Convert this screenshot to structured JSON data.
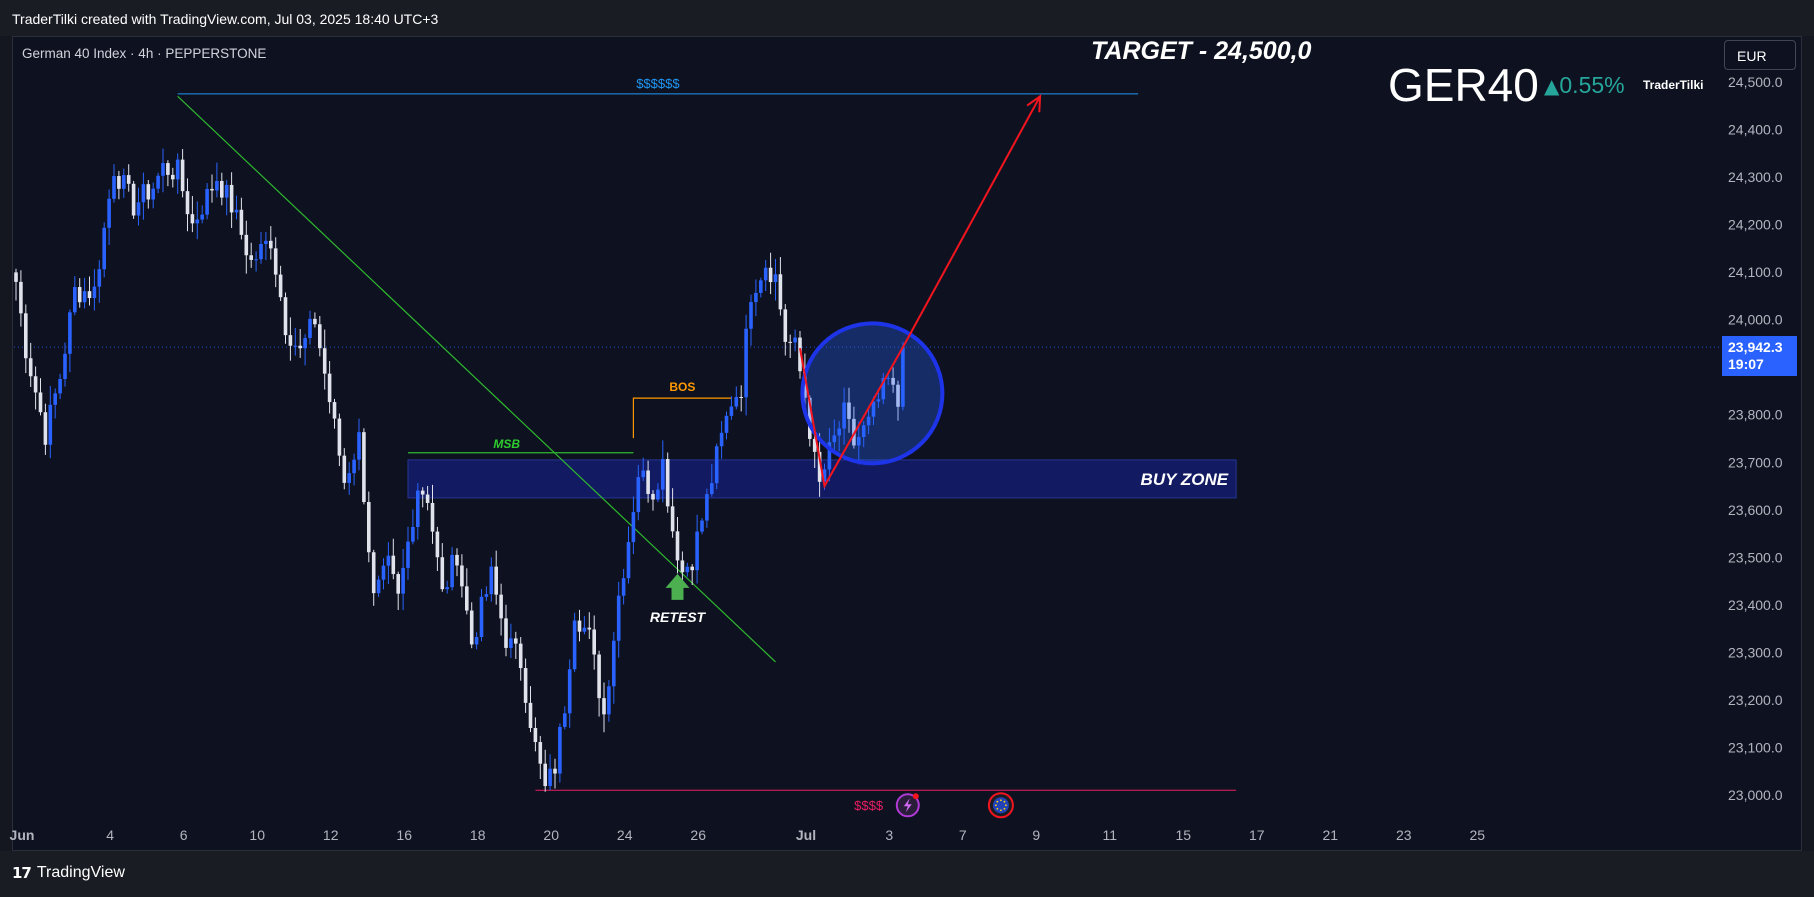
{
  "header": {
    "credit": "TraderTilki created with TradingView.com, Jul 03, 2025 18:40 UTC+3"
  },
  "footer": {
    "logo_mark": "17",
    "logo_text": "TradingView"
  },
  "symbol": {
    "description": "German 40 Index · 4h · PEPPERSTONE",
    "ticker": "GER40",
    "change": "0.55%",
    "brand": "TraderTilki",
    "currency": "EUR"
  },
  "last_price": {
    "value": 23942.3,
    "label": "23,942.3",
    "countdown": "19:07"
  },
  "colors": {
    "background": "#0e1220",
    "up_candle": "#2962ff",
    "down_candle": "#e0e3eb",
    "accent_red": "#f2141e",
    "accent_green": "#26a69a",
    "trendline": "#2eb82e",
    "bos": "#ff9800",
    "buy_zone": "#131d6e"
  },
  "chart_data": {
    "type": "candlestick",
    "timeframe": "4h",
    "ylim": [
      22920,
      24620
    ],
    "y_ticks": [
      {
        "value": 24500,
        "label": "24,500.0"
      },
      {
        "value": 24400,
        "label": "24,400.0"
      },
      {
        "value": 24300,
        "label": "24,300.0"
      },
      {
        "value": 24200,
        "label": "24,200.0"
      },
      {
        "value": 24100,
        "label": "24,100.0"
      },
      {
        "value": 24000,
        "label": "24,000.0"
      },
      {
        "value": 23800,
        "label": "23,800.0"
      },
      {
        "value": 23700,
        "label": "23,700.0"
      },
      {
        "value": 23600,
        "label": "23,600.0"
      },
      {
        "value": 23500,
        "label": "23,500.0"
      },
      {
        "value": 23400,
        "label": "23,400.0"
      },
      {
        "value": 23300,
        "label": "23,300.0"
      },
      {
        "value": 23200,
        "label": "23,200.0"
      },
      {
        "value": 23100,
        "label": "23,100.0"
      },
      {
        "value": 23000,
        "label": "23,000.0"
      }
    ],
    "x_ticks": [
      {
        "label": "Jun",
        "bar": 0
      },
      {
        "label": "4",
        "bar": 18
      },
      {
        "label": "6",
        "bar": 33
      },
      {
        "label": "10",
        "bar": 48
      },
      {
        "label": "12",
        "bar": 63
      },
      {
        "label": "16",
        "bar": 78
      },
      {
        "label": "18",
        "bar": 93
      },
      {
        "label": "20",
        "bar": 108
      },
      {
        "label": "24",
        "bar": 123
      },
      {
        "label": "26",
        "bar": 138
      },
      {
        "label": "Jul",
        "bar": 160
      },
      {
        "label": "3",
        "bar": 177
      },
      {
        "label": "7",
        "bar": 192
      },
      {
        "label": "9",
        "bar": 207
      },
      {
        "label": "11",
        "bar": 222
      },
      {
        "label": "15",
        "bar": 237
      },
      {
        "label": "17",
        "bar": 252
      },
      {
        "label": "21",
        "bar": 267
      },
      {
        "label": "23",
        "bar": 282
      },
      {
        "label": "25",
        "bar": 297
      }
    ],
    "bar_count_visible": 300,
    "anchors": [
      {
        "bar": 0,
        "value": 24080
      },
      {
        "bar": 2,
        "value": 23940
      },
      {
        "bar": 6,
        "value": 23760
      },
      {
        "bar": 9,
        "value": 23880
      },
      {
        "bar": 12,
        "value": 24060
      },
      {
        "bar": 16,
        "value": 24060
      },
      {
        "bar": 20,
        "value": 24320
      },
      {
        "bar": 24,
        "value": 24240
      },
      {
        "bar": 28,
        "value": 24280
      },
      {
        "bar": 30,
        "value": 24320
      },
      {
        "bar": 33,
        "value": 24310
      },
      {
        "bar": 36,
        "value": 24200
      },
      {
        "bar": 41,
        "value": 24300
      },
      {
        "bar": 44,
        "value": 24240
      },
      {
        "bar": 48,
        "value": 24120
      },
      {
        "bar": 52,
        "value": 24170
      },
      {
        "bar": 55,
        "value": 23990
      },
      {
        "bar": 58,
        "value": 23930
      },
      {
        "bar": 61,
        "value": 24000
      },
      {
        "bar": 64,
        "value": 23830
      },
      {
        "bar": 67,
        "value": 23660
      },
      {
        "bar": 70,
        "value": 23750
      },
      {
        "bar": 73,
        "value": 23410
      },
      {
        "bar": 76,
        "value": 23480
      },
      {
        "bar": 78,
        "value": 23410
      },
      {
        "bar": 82,
        "value": 23650
      },
      {
        "bar": 84,
        "value": 23630
      },
      {
        "bar": 87,
        "value": 23420
      },
      {
        "bar": 90,
        "value": 23510
      },
      {
        "bar": 93,
        "value": 23320
      },
      {
        "bar": 97,
        "value": 23460
      },
      {
        "bar": 100,
        "value": 23330
      },
      {
        "bar": 103,
        "value": 23280
      },
      {
        "bar": 106,
        "value": 23100
      },
      {
        "bar": 108,
        "value": 23010
      },
      {
        "bar": 110,
        "value": 23060
      },
      {
        "bar": 112,
        "value": 23190
      },
      {
        "bar": 114,
        "value": 23390
      },
      {
        "bar": 117,
        "value": 23330
      },
      {
        "bar": 120,
        "value": 23170
      },
      {
        "bar": 123,
        "value": 23420
      },
      {
        "bar": 125,
        "value": 23540
      },
      {
        "bar": 127,
        "value": 23680
      },
      {
        "bar": 130,
        "value": 23640
      },
      {
        "bar": 132,
        "value": 23700
      },
      {
        "bar": 134,
        "value": 23560
      },
      {
        "bar": 136,
        "value": 23470
      },
      {
        "bar": 138,
        "value": 23500
      },
      {
        "bar": 141,
        "value": 23620
      },
      {
        "bar": 143,
        "value": 23710
      },
      {
        "bar": 146,
        "value": 23830
      },
      {
        "bar": 148,
        "value": 23860
      },
      {
        "bar": 150,
        "value": 24060
      },
      {
        "bar": 153,
        "value": 24120
      },
      {
        "bar": 155,
        "value": 24090
      },
      {
        "bar": 157,
        "value": 23960
      },
      {
        "bar": 159,
        "value": 23940
      },
      {
        "bar": 161,
        "value": 23840
      },
      {
        "bar": 163,
        "value": 23700
      },
      {
        "bar": 164,
        "value": 23650
      },
      {
        "bar": 166,
        "value": 23720
      },
      {
        "bar": 169,
        "value": 23800
      },
      {
        "bar": 171,
        "value": 23740
      },
      {
        "bar": 174,
        "value": 23780
      },
      {
        "bar": 176,
        "value": 23830
      },
      {
        "bar": 178,
        "value": 23870
      },
      {
        "bar": 180,
        "value": 23820
      },
      {
        "bar": 181,
        "value": 23942
      }
    ],
    "annotations": {
      "target_label": "TARGET - 24,500,0",
      "liquidity_top_label": "$$$$$$",
      "liquidity_top_level": 24475,
      "liquidity_top_from_bar": 33,
      "liquidity_top_to_bar": 229,
      "liquidity_bottom_label": "$$$$",
      "liquidity_bottom_level": 23010,
      "liquidity_bottom_from_bar": 106,
      "liquidity_bottom_to_bar": 249,
      "trendline": {
        "from_bar": 33,
        "from_value": 24470,
        "to_bar": 155,
        "to_value": 23280
      },
      "msb_label": "MSB",
      "msb_level": 23720,
      "msb_from_bar": 80,
      "msb_to_bar": 126,
      "bos_label": "BOS",
      "bos_level": 23835,
      "bos_from_bar": 126,
      "bos_to_bar": 146,
      "buy_zone_label": "BUY ZONE",
      "buy_zone_top": 23705,
      "buy_zone_bottom": 23625,
      "buy_zone_from_bar": 80,
      "buy_zone_to_bar": 249,
      "retest_label": "RETEST",
      "retest_bar": 135,
      "retest_value": 23440,
      "circle_bar": 176,
      "circle_value": 23845,
      "v_pattern": [
        {
          "bar": 160,
          "value": 23940
        },
        {
          "bar": 165,
          "value": 23650
        },
        {
          "bar": 181,
          "value": 23942
        }
      ],
      "target_arrow": {
        "from_bar": 181,
        "from_value": 23942,
        "to_bar": 209,
        "to_value": 24470
      }
    }
  }
}
